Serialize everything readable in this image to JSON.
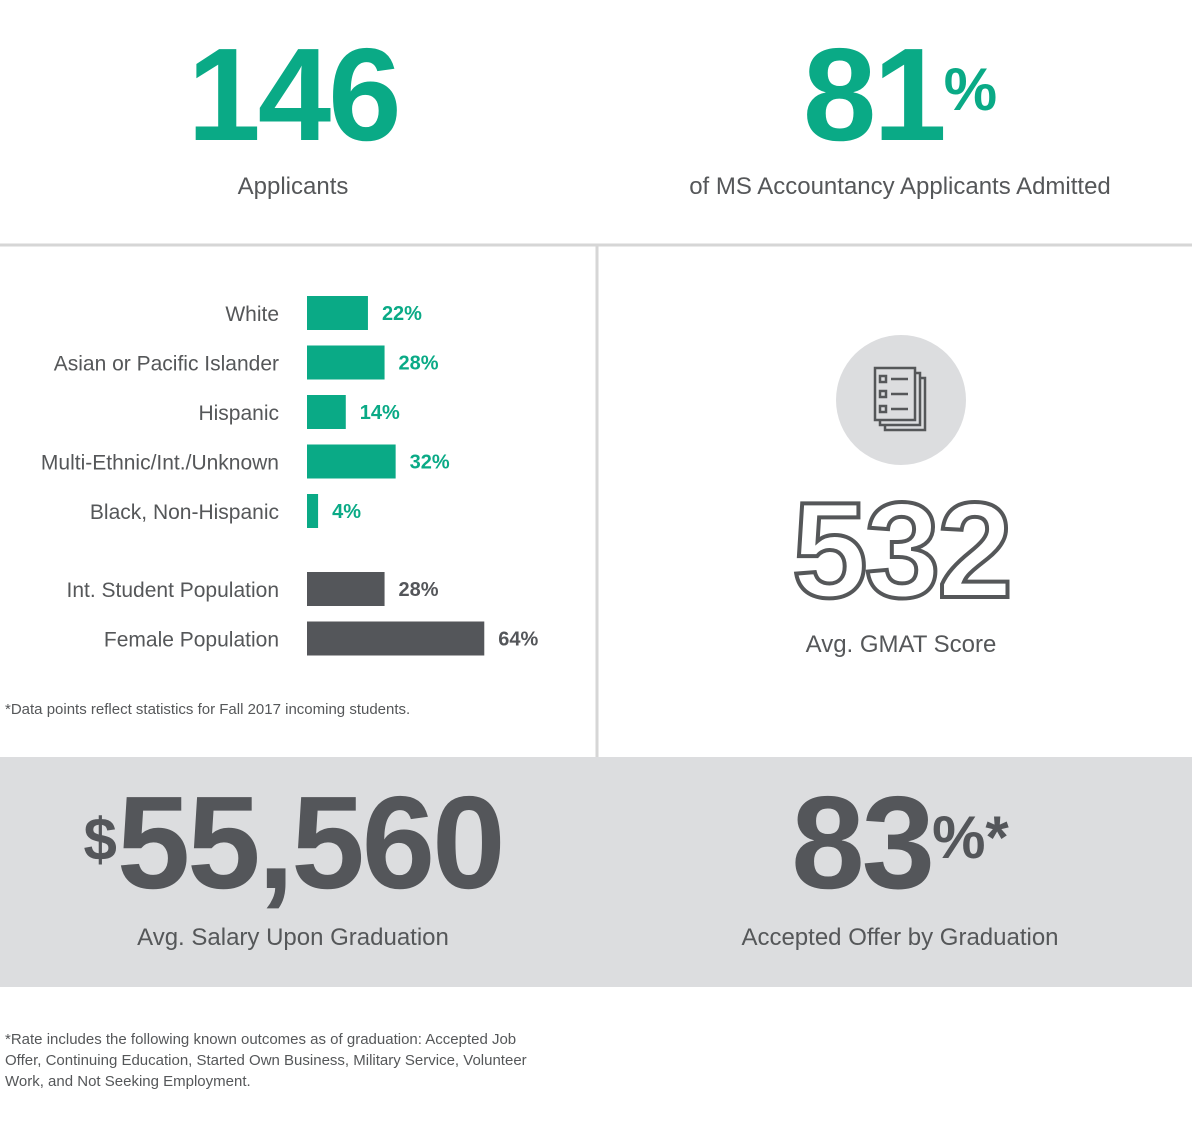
{
  "stats": {
    "applicants": {
      "number": "146",
      "label": "Applicants"
    },
    "admitted": {
      "number": "81",
      "suffix": "%",
      "label": "of MS Accountancy Applicants Admitted"
    },
    "gmat": {
      "number": "532",
      "label": "Avg. GMAT Score"
    },
    "salary": {
      "prefix": "$",
      "number": "55,560",
      "label": "Avg. Salary Upon Graduation"
    },
    "offer": {
      "number": "83",
      "suffix": "%*",
      "label": "Accepted Offer by Graduation"
    }
  },
  "notes": {
    "data_note": "*Data points reflect statistics for Fall 2017 incoming students.",
    "rate_note": [
      "*Rate includes the following known outcomes as of graduation: Accepted Job",
      "Offer, Continuing Education, Started Own Business, Military Service, Volunteer",
      "Work, and Not Seeking Employment."
    ]
  },
  "chart_data": [
    {
      "type": "bar",
      "orientation": "horizontal",
      "color": "#0aaa86",
      "categories": [
        "White",
        "Asian or Pacific Islander",
        "Hispanic",
        "Multi-Ethnic/Int./Unknown",
        "Black, Non-Hispanic"
      ],
      "values": [
        22,
        28,
        14,
        32,
        4
      ],
      "value_labels": [
        "22%",
        "28%",
        "14%",
        "32%",
        "4%"
      ]
    },
    {
      "type": "bar",
      "orientation": "horizontal",
      "color": "#54565a",
      "categories": [
        "Int. Student Population",
        "Female Population"
      ],
      "values": [
        28,
        64
      ],
      "value_labels": [
        "28%",
        "64%"
      ]
    }
  ]
}
